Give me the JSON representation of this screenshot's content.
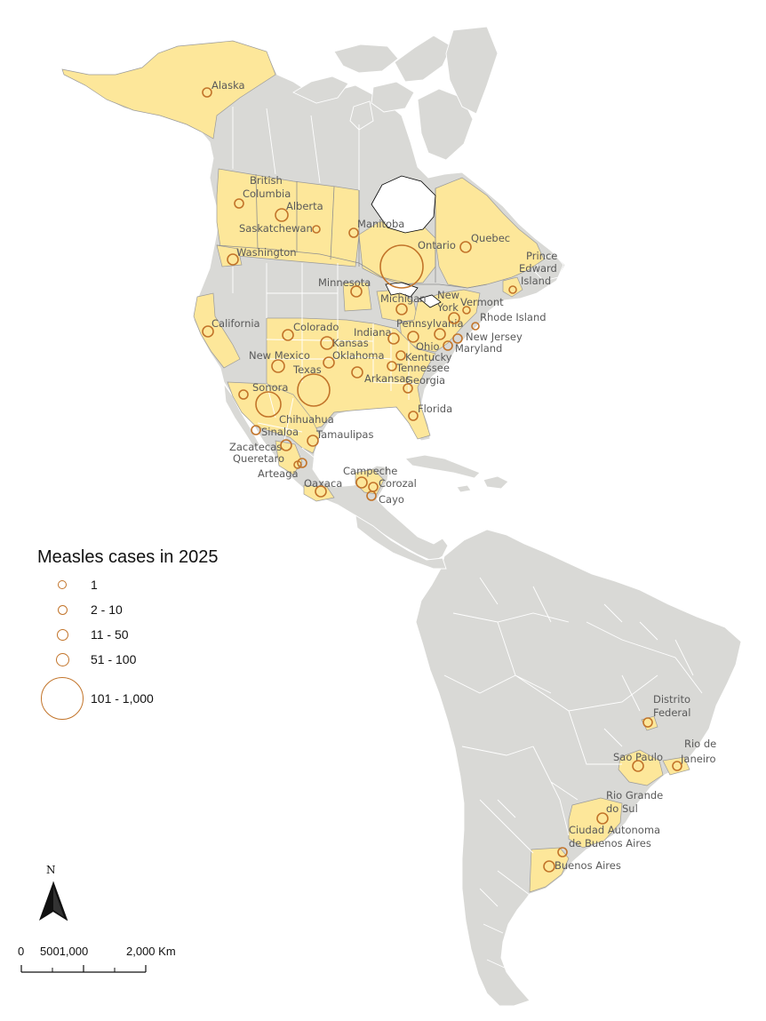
{
  "legend": {
    "title": "Measles cases in 2025",
    "items": [
      {
        "label": "1"
      },
      {
        "label": "2 - 10"
      },
      {
        "label": "11 - 50"
      },
      {
        "label": "51 - 100"
      },
      {
        "label": "101 - 1,000"
      }
    ]
  },
  "north_arrow": {
    "letter": "N"
  },
  "scale_bar": {
    "labels": [
      "0",
      "5001,000",
      "2,000 Km"
    ]
  },
  "places": [
    {
      "name": "Alaska",
      "cases_class": "2 - 10"
    },
    {
      "name": "British Columbia",
      "cases_class": "2 - 10"
    },
    {
      "name": "Alberta",
      "cases_class": "51 - 100"
    },
    {
      "name": "Saskatchewan",
      "cases_class": "1"
    },
    {
      "name": "Manitoba",
      "cases_class": "2 - 10"
    },
    {
      "name": "Ontario",
      "cases_class": "101 - 1,000"
    },
    {
      "name": "Quebec",
      "cases_class": "11 - 50"
    },
    {
      "name": "Prince Edward Island",
      "cases_class": "1"
    },
    {
      "name": "Washington",
      "cases_class": "11 - 50"
    },
    {
      "name": "California",
      "cases_class": "11 - 50"
    },
    {
      "name": "Minnesota",
      "cases_class": "11 - 50"
    },
    {
      "name": "Michigan",
      "cases_class": "11 - 50"
    },
    {
      "name": "New York",
      "cases_class": "11 - 50"
    },
    {
      "name": "Vermont",
      "cases_class": "1"
    },
    {
      "name": "Rhode Island",
      "cases_class": "1"
    },
    {
      "name": "Pennsylvania",
      "cases_class": "11 - 50"
    },
    {
      "name": "New Jersey",
      "cases_class": "2 - 10"
    },
    {
      "name": "Maryland",
      "cases_class": "2 - 10"
    },
    {
      "name": "Indiana",
      "cases_class": "11 - 50"
    },
    {
      "name": "Ohio",
      "cases_class": "11 - 50"
    },
    {
      "name": "Kentucky",
      "cases_class": "2 - 10"
    },
    {
      "name": "Tennessee",
      "cases_class": "2 - 10"
    },
    {
      "name": "Georgia",
      "cases_class": "2 - 10"
    },
    {
      "name": "Florida",
      "cases_class": "2 - 10"
    },
    {
      "name": "Colorado",
      "cases_class": "11 - 50"
    },
    {
      "name": "Kansas",
      "cases_class": "51 - 100"
    },
    {
      "name": "Oklahoma",
      "cases_class": "11 - 50"
    },
    {
      "name": "Arkansas",
      "cases_class": "11 - 50"
    },
    {
      "name": "New Mexico",
      "cases_class": "51 - 100"
    },
    {
      "name": "Texas",
      "cases_class": "101 - 1,000"
    },
    {
      "name": "Sonora",
      "cases_class": "2 - 10"
    },
    {
      "name": "Chihuahua",
      "cases_class": "101 - 1,000"
    },
    {
      "name": "Sinaloa",
      "cases_class": "2 - 10"
    },
    {
      "name": "Tamaulipas",
      "cases_class": "11 - 50"
    },
    {
      "name": "Zacatecas",
      "cases_class": "11 - 50"
    },
    {
      "name": "Queretaro",
      "cases_class": "1"
    },
    {
      "name": "Arteaga",
      "cases_class": "2 - 10"
    },
    {
      "name": "Oaxaca",
      "cases_class": "11 - 50"
    },
    {
      "name": "Campeche",
      "cases_class": "11 - 50"
    },
    {
      "name": "Corozal",
      "cases_class": "2 - 10"
    },
    {
      "name": "Cayo",
      "cases_class": "2 - 10"
    },
    {
      "name": "Distrito Federal",
      "cases_class": "2 - 10"
    },
    {
      "name": "Sao Paulo",
      "cases_class": "11 - 50"
    },
    {
      "name": "Rio de Janeiro",
      "cases_class": "2 - 10"
    },
    {
      "name": "Rio Grande do Sul",
      "cases_class": "11 - 50"
    },
    {
      "name": "Ciudad Autonoma de Buenos Aires",
      "cases_class": "2 - 10"
    },
    {
      "name": "Buenos Aires",
      "cases_class": "11 - 50"
    }
  ]
}
